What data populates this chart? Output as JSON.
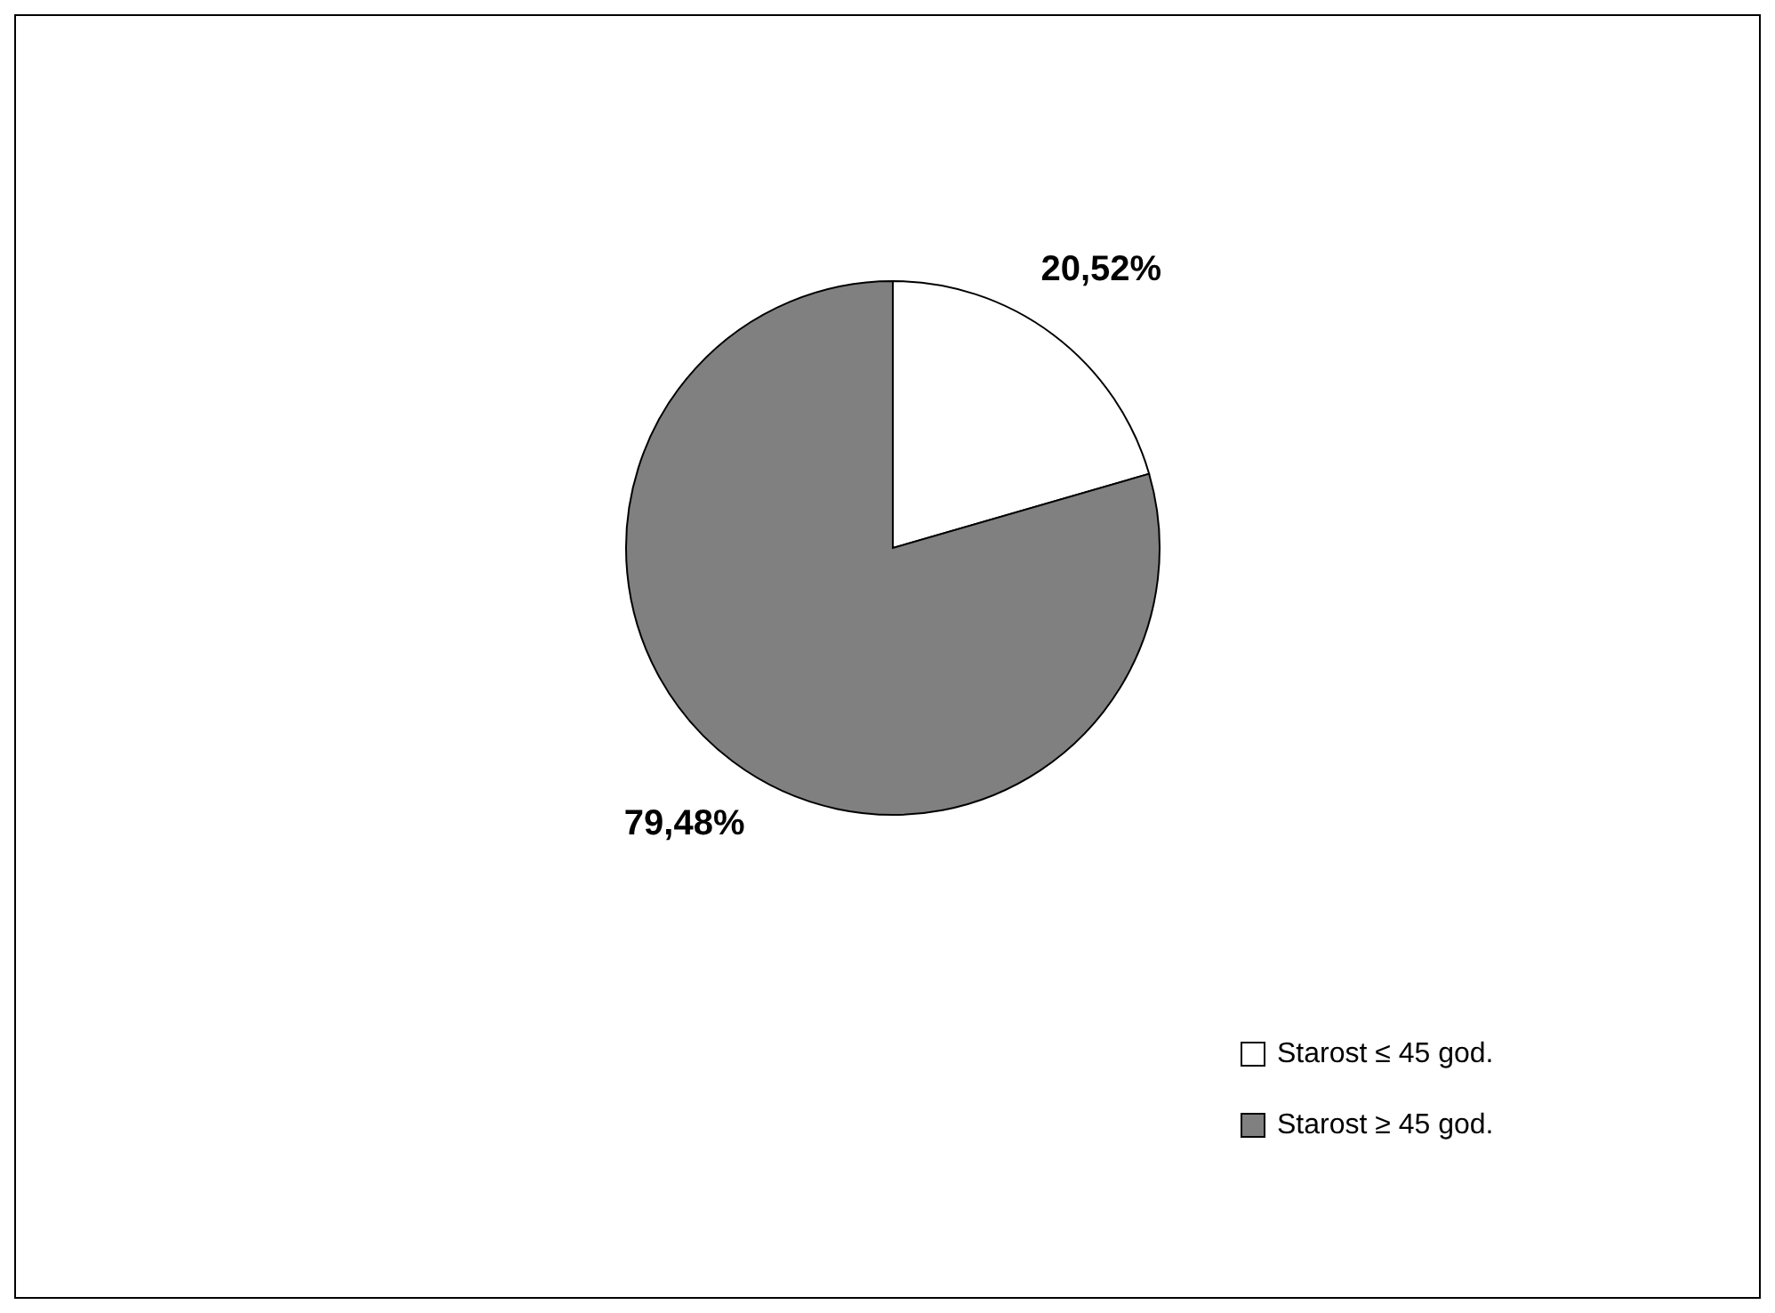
{
  "chart_data": {
    "type": "pie",
    "categories": [
      "Starost ≤ 45 god.",
      "Starost ≥ 45 god."
    ],
    "values": [
      20.52,
      79.48
    ],
    "colors": [
      "#ffffff",
      "#808080"
    ],
    "value_labels": [
      "20,52%",
      "79,48%"
    ],
    "legend": "bottom right"
  }
}
